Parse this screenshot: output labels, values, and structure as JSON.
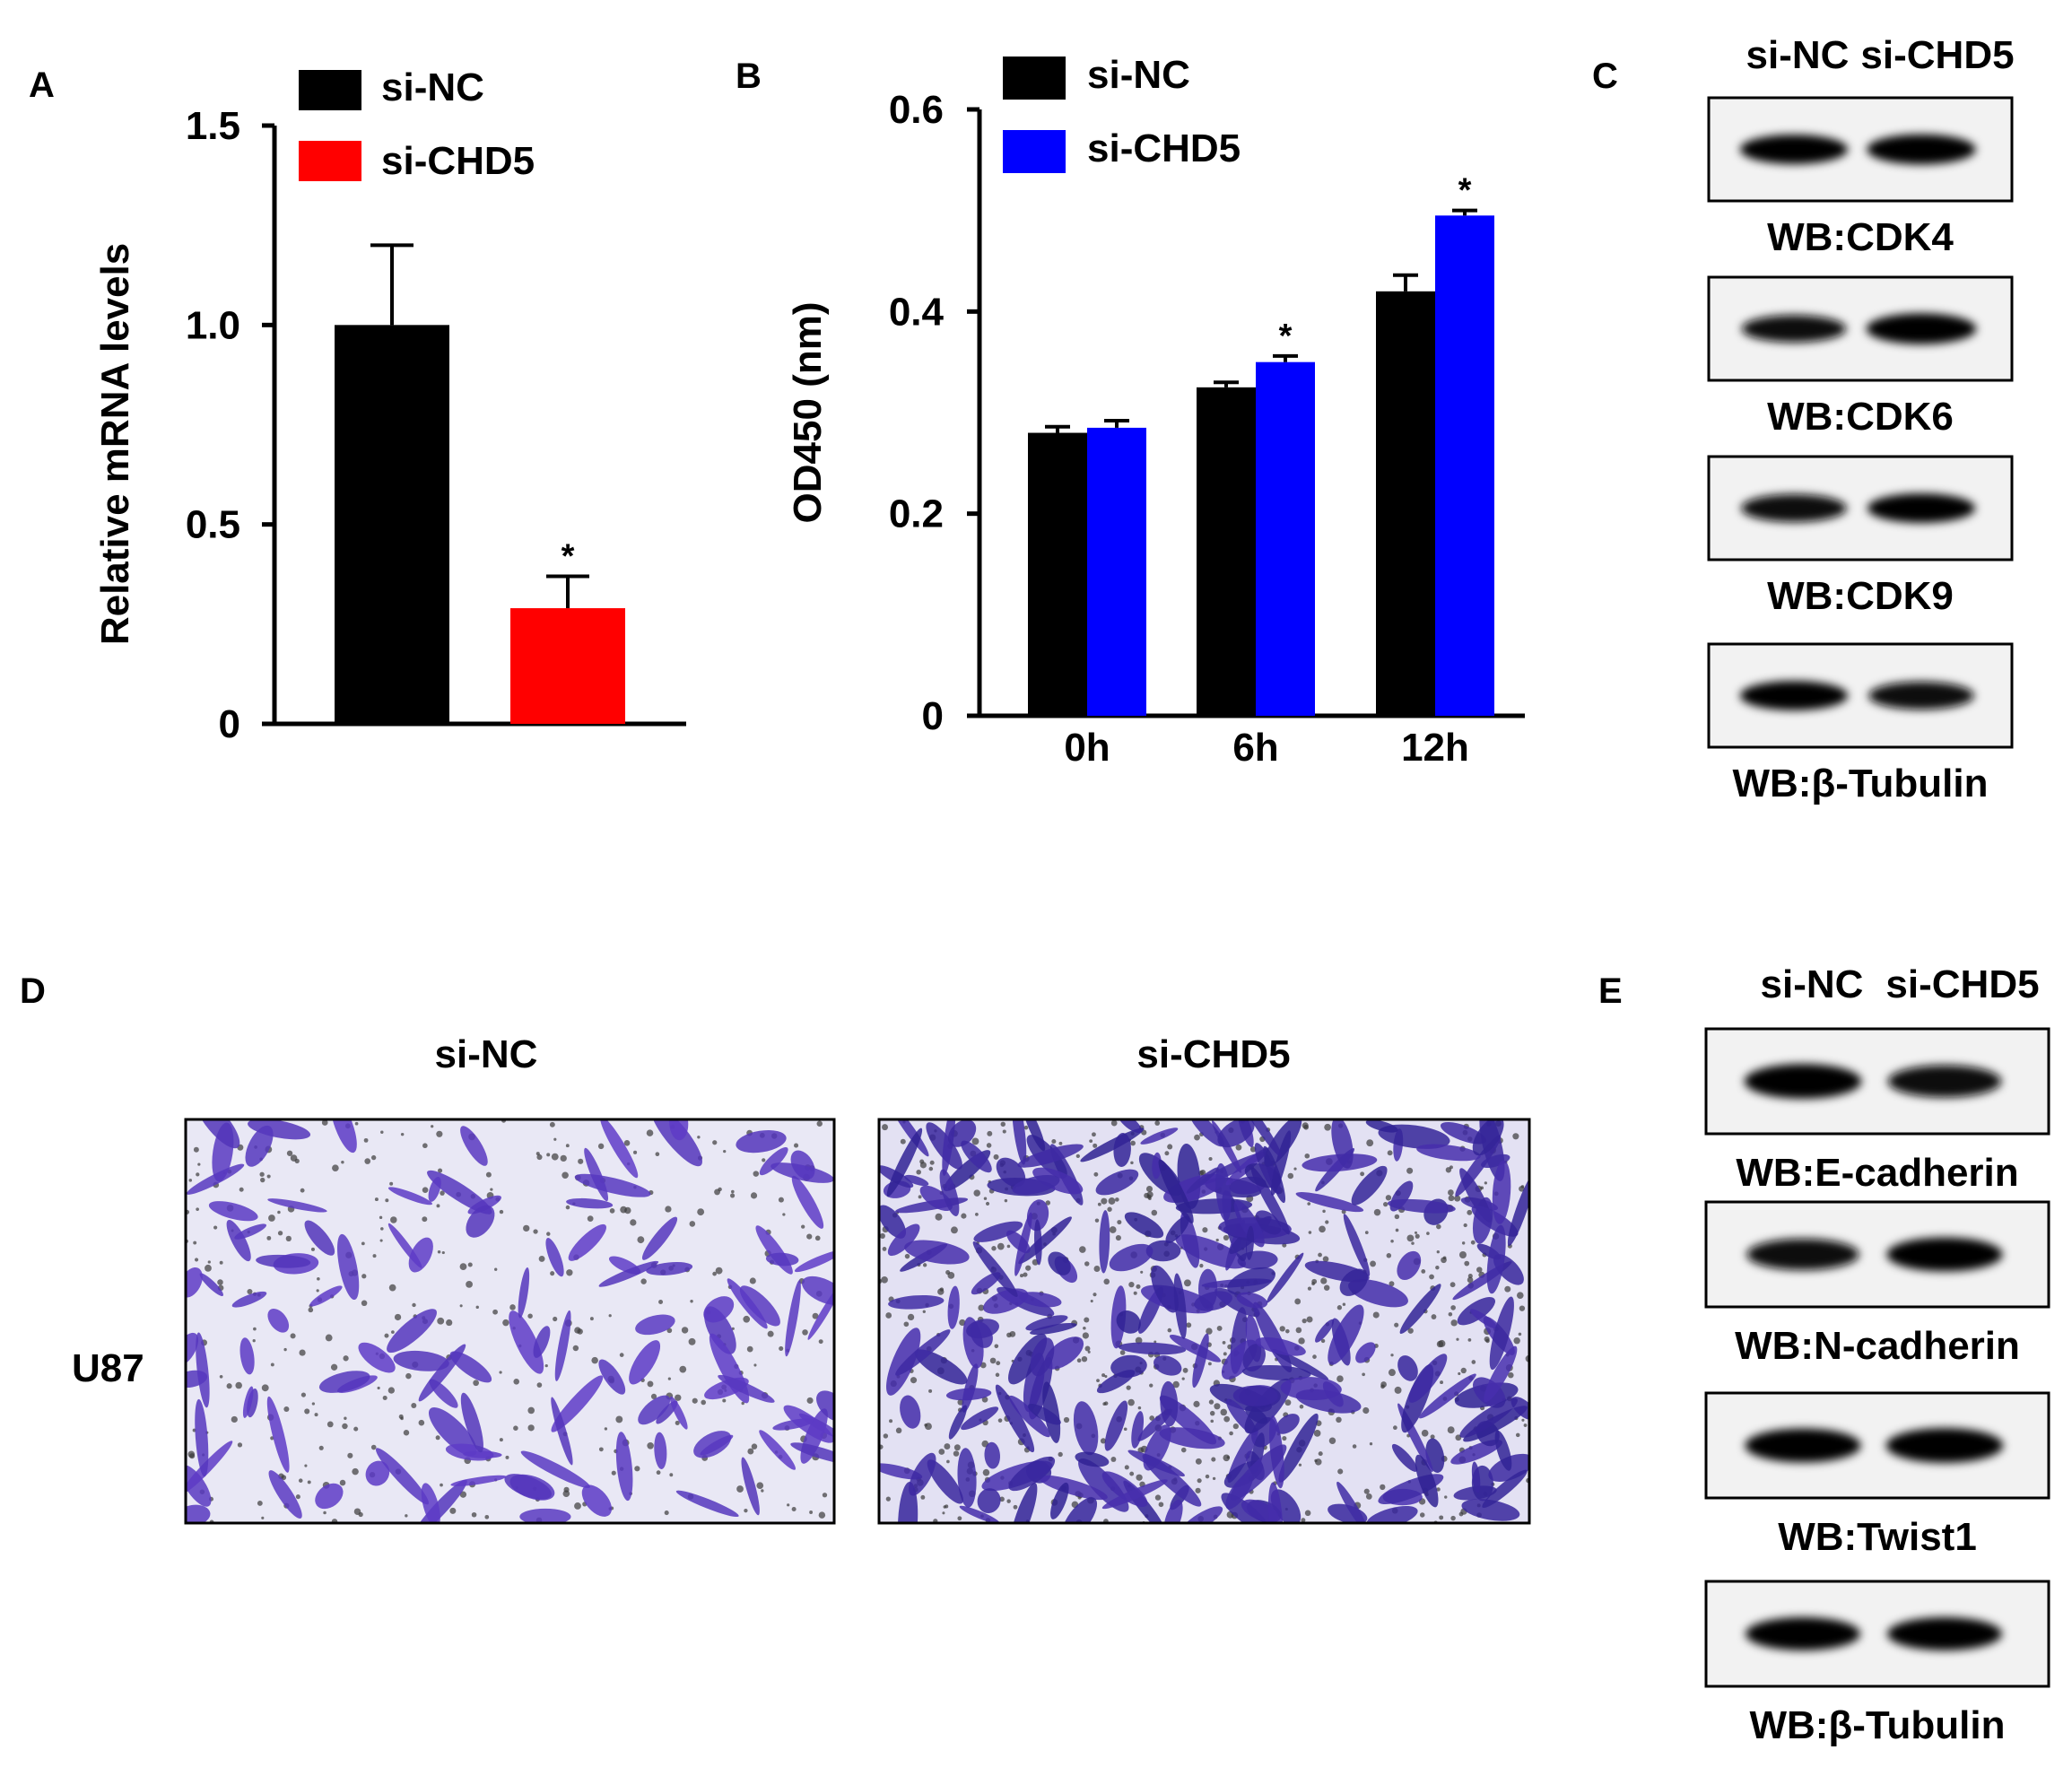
{
  "panel_labels": {
    "a": "A",
    "b": "B",
    "c": "C",
    "d": "D",
    "e": "E"
  },
  "colors": {
    "si_nc": "#000000",
    "si_chd5_panel_a": "#ff0000",
    "si_chd5_panel_b": "#0000ff",
    "crystal_violet": "#5a3fbf"
  },
  "chart_data": [
    {
      "panel": "A",
      "type": "bar",
      "categories": [
        "si-NC",
        "si-CHD5"
      ],
      "values": [
        1.0,
        0.29
      ],
      "errors": [
        0.2,
        0.08
      ],
      "significance": [
        "",
        "*"
      ],
      "legend": [
        "si-NC",
        "si-CHD5"
      ],
      "colors": [
        "#000000",
        "#ff0000"
      ],
      "title": "",
      "xlabel": "",
      "ylabel": "Relative mRNA levels",
      "ylim": [
        0,
        1.5
      ],
      "yticks": [
        0,
        0.5,
        1.0,
        1.5
      ],
      "ytick_labels": [
        "0",
        "0.5",
        "1.0",
        "1.5"
      ],
      "legend_position": "top",
      "grid": false
    },
    {
      "panel": "B",
      "type": "bar",
      "categories": [
        "0h",
        "6h",
        "12h"
      ],
      "series": [
        {
          "name": "si-NC",
          "color": "#000000",
          "values": [
            0.28,
            0.325,
            0.42
          ],
          "errors": [
            0.006,
            0.005,
            0.016
          ],
          "significance": [
            "",
            "",
            ""
          ]
        },
        {
          "name": "si-CHD5",
          "color": "#0000ff",
          "values": [
            0.285,
            0.35,
            0.495
          ],
          "errors": [
            0.007,
            0.006,
            0.005
          ],
          "significance": [
            "",
            "*",
            "*"
          ]
        }
      ],
      "title": "",
      "xlabel": "",
      "ylabel": "OD450 (nm)",
      "ylim": [
        0,
        0.6
      ],
      "yticks": [
        0,
        0.2,
        0.4,
        0.6
      ],
      "ytick_labels": [
        "0",
        "0.2",
        "0.4",
        "0.6"
      ],
      "legend_position": "top-left",
      "grid": false
    }
  ],
  "blot_c": {
    "lanes": [
      "si-NC",
      "si-CHD5"
    ],
    "blots": [
      {
        "label": "WB:CDK4",
        "intensities": [
          0.85,
          0.9
        ]
      },
      {
        "label": "WB:CDK6",
        "intensities": [
          0.7,
          0.95
        ]
      },
      {
        "label": "WB:CDK9",
        "intensities": [
          0.75,
          0.85
        ]
      },
      {
        "label": "WB:β-Tubulin",
        "intensities": [
          0.85,
          0.75
        ]
      }
    ]
  },
  "blot_e": {
    "lanes": [
      "si-NC",
      "si-CHD5"
    ],
    "blots": [
      {
        "label": "WB:E-cadherin",
        "intensities": [
          0.95,
          0.8
        ]
      },
      {
        "label": "WB:N-cadherin",
        "intensities": [
          0.75,
          0.9
        ]
      },
      {
        "label": "WB:Twist1",
        "intensities": [
          0.9,
          0.95
        ]
      },
      {
        "label": "WB:β-Tubulin",
        "intensities": [
          0.85,
          0.85
        ]
      }
    ]
  },
  "transwell_d": {
    "row_label": "U87",
    "images": [
      {
        "label": "si-NC",
        "density": 0.45
      },
      {
        "label": "si-CHD5",
        "density": 1.0
      }
    ]
  }
}
